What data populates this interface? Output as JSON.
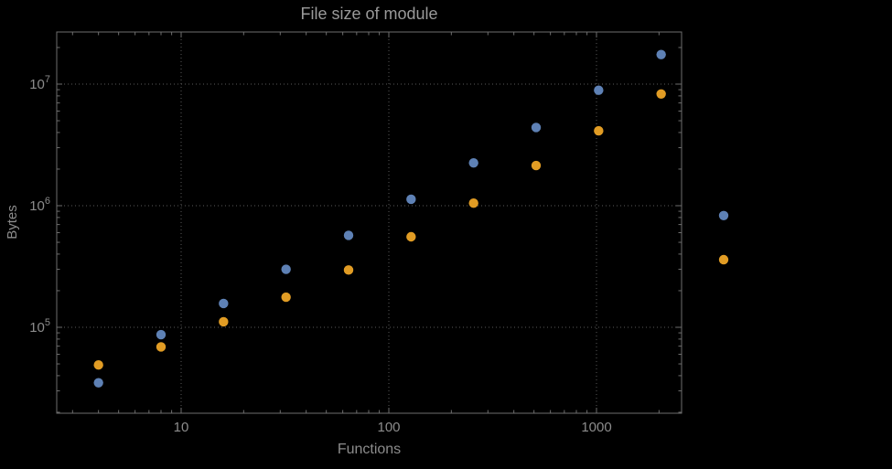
{
  "page": {
    "background": "#000000"
  },
  "chart_data": {
    "type": "scatter",
    "title": "File size of module",
    "xlabel": "Functions",
    "ylabel": "Bytes",
    "xscale": "log",
    "yscale": "log",
    "xlim": [
      2.5,
      2600
    ],
    "ylim": [
      20000,
      27000000
    ],
    "grid": "dotted-major",
    "legend": "none",
    "frame_color": "#6e6e6e",
    "grid_color": "#5a5a5a",
    "text_color": "#8c8c8c",
    "point_colors": {
      "series1": "#5e81b5",
      "series2": "#e19c24"
    },
    "xticks": [
      {
        "value": 10,
        "label": "10"
      },
      {
        "value": 100,
        "label": "100"
      },
      {
        "value": 1000,
        "label": "1000"
      }
    ],
    "yticks": [
      {
        "value": 100000,
        "base": "10",
        "exp": "5"
      },
      {
        "value": 1000000,
        "base": "10",
        "exp": "6"
      },
      {
        "value": 10000000,
        "base": "10",
        "exp": "7"
      }
    ],
    "series": [
      {
        "name": "blue-series",
        "color": "#5e81b5",
        "points": [
          [
            4,
            35000
          ],
          [
            8,
            87000
          ],
          [
            16,
            157000
          ],
          [
            32,
            300000
          ],
          [
            64,
            570000
          ],
          [
            128,
            1130000
          ],
          [
            256,
            2250000
          ],
          [
            512,
            4400000
          ],
          [
            1024,
            8900000
          ],
          [
            2048,
            17500000
          ],
          [
            4096,
            830000
          ]
        ]
      },
      {
        "name": "orange-series",
        "color": "#e19c24",
        "points": [
          [
            4,
            49000
          ],
          [
            8,
            69000
          ],
          [
            16,
            111000
          ],
          [
            32,
            177000
          ],
          [
            64,
            296000
          ],
          [
            128,
            555000
          ],
          [
            256,
            1050000
          ],
          [
            512,
            2140000
          ],
          [
            1024,
            4130000
          ],
          [
            2048,
            8300000
          ],
          [
            4096,
            360000
          ]
        ]
      }
    ]
  }
}
